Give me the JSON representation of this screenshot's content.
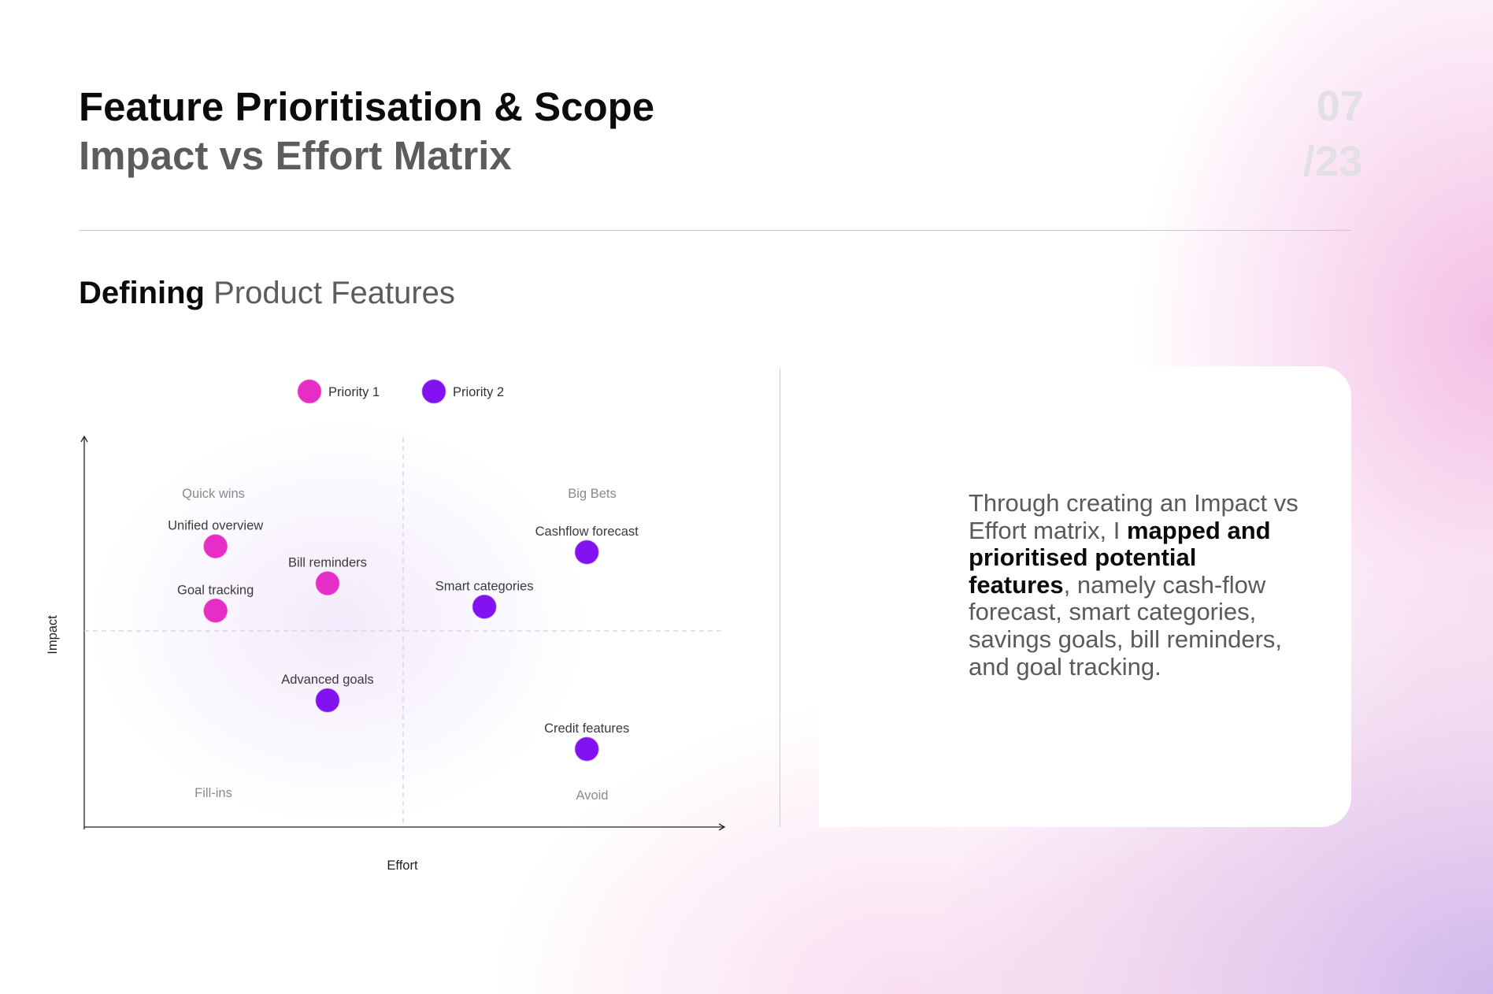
{
  "header": {
    "title": "Feature Prioritisation & Scope",
    "subtitle": "Impact vs Effort Matrix",
    "page_current": "07",
    "page_total": "/23"
  },
  "section": {
    "bold": "Defining",
    "rest": "Product Features"
  },
  "chart_data": {
    "type": "scatter",
    "xlabel": "Effort",
    "ylabel": "Impact",
    "xlim": [
      0,
      10
    ],
    "ylim": [
      0,
      10
    ],
    "grid": false,
    "legend_position": "top",
    "quadrants": [
      "Quick wins",
      "Big Bets",
      "Fill-ins",
      "Avoid"
    ],
    "series": [
      {
        "name": "Priority 1",
        "color": "#e62ec6",
        "points": [
          {
            "label": "Unified overview",
            "x": 2.05,
            "y": 7.2
          },
          {
            "label": "Bill reminders",
            "x": 3.8,
            "y": 6.25
          },
          {
            "label": "Goal tracking",
            "x": 2.05,
            "y": 5.55
          }
        ]
      },
      {
        "name": "Priority 2",
        "color": "#8212f0",
        "points": [
          {
            "label": "Cashflow forecast",
            "x": 7.85,
            "y": 7.05
          },
          {
            "label": "Smart categories",
            "x": 6.25,
            "y": 5.65
          },
          {
            "label": "Advanced goals",
            "x": 3.8,
            "y": 3.25
          },
          {
            "label": "Credit features",
            "x": 7.85,
            "y": 2.0
          }
        ]
      }
    ]
  },
  "card": {
    "segments": [
      {
        "text": "Through creating an Impact vs Effort matrix, I ",
        "bold": false
      },
      {
        "text": "mapped and prioritised potential features",
        "bold": true
      },
      {
        "text": ", namely cash-flow forecast, smart categories, savings goals, bill reminders, and goal tracking.",
        "bold": false
      }
    ]
  }
}
